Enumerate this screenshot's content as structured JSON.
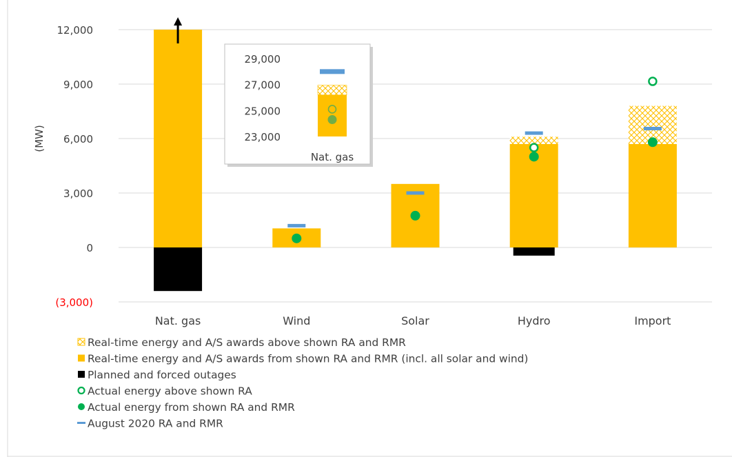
{
  "chart_data": {
    "type": "bar",
    "ylabel": "(MW)",
    "ylim": [
      -3000,
      12000
    ],
    "yticks": [
      {
        "value": 12000,
        "label": "12,000"
      },
      {
        "value": 9000,
        "label": "9,000"
      },
      {
        "value": 6000,
        "label": "6,000"
      },
      {
        "value": 3000,
        "label": "3,000"
      },
      {
        "value": 0,
        "label": "0"
      },
      {
        "value": -3000,
        "label": "(3,000)",
        "color": "#ff0000"
      }
    ],
    "grid": true,
    "categories": [
      "Nat. gas",
      "Wind",
      "Solar",
      "Hydro",
      "Import"
    ],
    "series": [
      {
        "name": "Real-time energy and A/S awards from shown RA and RMR (incl. all solar and wind)",
        "kind": "bar",
        "color": "#ffc000",
        "values": [
          12000,
          1050,
          3500,
          5700,
          5700
        ]
      },
      {
        "name": "Real-time energy and A/S awards above shown RA and RMR",
        "kind": "bar-hatched",
        "color": "#ffc000",
        "values": [
          0,
          0,
          0,
          400,
          2100
        ]
      },
      {
        "name": "Planned and forced outages",
        "kind": "bar",
        "color": "#000000",
        "values": [
          -2400,
          0,
          0,
          -450,
          0
        ]
      },
      {
        "name": "Actual energy above shown RA",
        "kind": "marker-open",
        "color": "#00b050",
        "values": [
          null,
          null,
          null,
          5500,
          9150
        ]
      },
      {
        "name": "Actual energy from shown RA and RMR",
        "kind": "marker-filled",
        "color": "#00b050",
        "values": [
          null,
          500,
          1750,
          5000,
          5800
        ]
      },
      {
        "name": "August 2020 RA and RMR",
        "kind": "dash",
        "color": "#5b9bd5",
        "values": [
          null,
          1200,
          3000,
          6300,
          6550
        ]
      }
    ],
    "legend": {
      "placement": "bottom",
      "items": [
        {
          "label": "Real-time energy and A/S awards above shown RA and RMR",
          "symbol": "hatched-square"
        },
        {
          "label": "Real-time energy and A/S awards from shown RA and RMR (incl. all solar and wind)",
          "symbol": "square",
          "color": "#ffc000"
        },
        {
          "label": "Planned and forced outages",
          "symbol": "square",
          "color": "#000000"
        },
        {
          "label": "Actual energy above shown RA",
          "symbol": "open-circle",
          "color": "#00b050"
        },
        {
          "label": "Actual energy from shown RA and RMR",
          "symbol": "filled-circle",
          "color": "#00b050"
        },
        {
          "label": "August 2020 RA and RMR",
          "symbol": "dash",
          "color": "#5b9bd5"
        }
      ]
    },
    "annotations": [
      {
        "type": "arrow-up",
        "category": "Nat. gas",
        "note": "bar exceeds axis maximum"
      }
    ],
    "inset": {
      "type": "bar",
      "category": "Nat. gas",
      "ylim": [
        23000,
        29000
      ],
      "yticks": [
        {
          "value": 29000,
          "label": "29,000"
        },
        {
          "value": 27000,
          "label": "27,000"
        },
        {
          "value": 25000,
          "label": "25,000"
        },
        {
          "value": 23000,
          "label": "23,000"
        }
      ],
      "bar_from_ra": 26200,
      "bar_above_ra": 26950,
      "actual_above_ra": 25100,
      "actual_from_ra": 24300,
      "ra_and_rmr": 28000
    }
  }
}
